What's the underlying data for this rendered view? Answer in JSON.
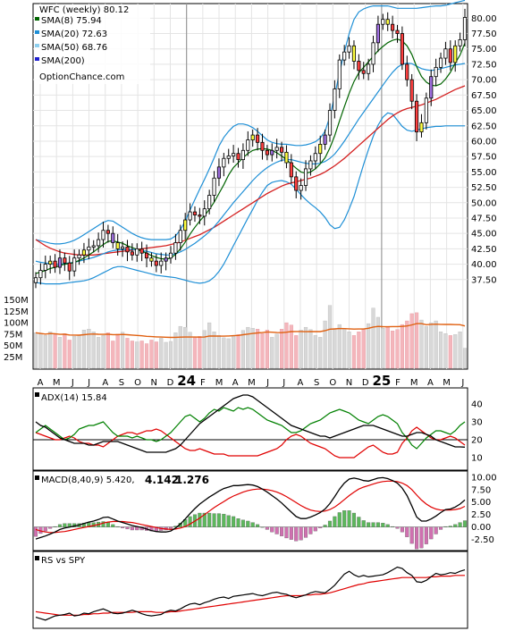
{
  "chart_data": {
    "type": "candlestick",
    "symbol": "WFC",
    "title": "WFC (weekly) 80.12",
    "source_label": "OptionChance.com",
    "colors": {
      "sma8": "#006400",
      "sma20": "#1e8fd6",
      "sma50": "#8ecfee",
      "sma200": "#2020d0",
      "sma40": "#d42020",
      "up": "#ffffff",
      "down": "#ff4040",
      "bb": "#1e8fd6",
      "vol_up": "#d8d8d8",
      "vol_down": "#f4b6bc",
      "vol_ma": "#e06010",
      "adx": "#000000",
      "pdi": "#008000",
      "mdi": "#e00000",
      "macd": "#000000",
      "macd_signal": "#e00000",
      "hist_up": "#5cb85c",
      "hist_down": "#d070b0",
      "rs": "#000000",
      "rs_ma": "#e00000"
    },
    "legend": [
      {
        "label": "SMA(8) 75.94",
        "color": "#006400"
      },
      {
        "label": "SMA(20) 72.63",
        "color": "#1e8fd6"
      },
      {
        "label": "SMA(50) 68.76",
        "color": "#8ecfee"
      },
      {
        "label": "SMA(200)",
        "color": "#2020d0"
      }
    ],
    "price_axis": {
      "min": 35,
      "max": 81.5,
      "ticks": [
        "80.00",
        "77.50",
        "75.00",
        "72.50",
        "70.00",
        "67.50",
        "65.00",
        "62.50",
        "60.00",
        "57.50",
        "55.00",
        "52.50",
        "50.00",
        "47.50",
        "45.00",
        "42.50",
        "40.00",
        "37.50"
      ]
    },
    "volume_axis": {
      "max": 165,
      "ticks": [
        "150M",
        "125M",
        "100M",
        "75M",
        "50M",
        "25M"
      ]
    },
    "x_labels": [
      "A",
      "M",
      "J",
      "J",
      "A",
      "S",
      "O",
      "N",
      "D",
      "24",
      "F",
      "M",
      "A",
      "M",
      "J",
      "J",
      "A",
      "S",
      "O",
      "N",
      "D",
      "25",
      "F",
      "M",
      "A",
      "M",
      "J"
    ],
    "closes": [
      37.8,
      39.0,
      40.0,
      40.5,
      39.5,
      41.0,
      40.2,
      38.9,
      41.0,
      41.5,
      42.3,
      42.8,
      43.0,
      44.0,
      45.5,
      45.0,
      43.5,
      42.5,
      42.8,
      42.0,
      41.5,
      42.5,
      41.8,
      41.0,
      40.5,
      39.8,
      40.5,
      41.0,
      41.8,
      43.5,
      45.5,
      47.2,
      48.5,
      48.0,
      47.8,
      49.0,
      51.2,
      54.0,
      55.8,
      57.2,
      57.6,
      58.0,
      57.0,
      58.5,
      60.2,
      61.0,
      59.8,
      58.5,
      57.8,
      58.5,
      59.0,
      58.2,
      56.5,
      54.2,
      52.0,
      52.8,
      55.5,
      56.8,
      58.0,
      59.5,
      61.0,
      65.0,
      68.5,
      73.2,
      74.5,
      75.5,
      73.0,
      71.5,
      71.0,
      72.5,
      76.0,
      79.0,
      79.8,
      79.0,
      78.0,
      77.5,
      72.5,
      70.0,
      66.5,
      61.5,
      63.0,
      67.0,
      70.5,
      72.0,
      73.5,
      75.0,
      72.8,
      75.5,
      76.5,
      80.12
    ],
    "volumes": [
      78,
      75,
      72,
      80,
      74,
      68,
      76,
      62,
      70,
      72,
      84,
      86,
      80,
      68,
      72,
      78,
      60,
      75,
      79,
      66,
      60,
      58,
      60,
      54,
      62,
      58,
      66,
      57,
      59,
      78,
      92,
      90,
      79,
      67,
      70,
      83,
      100,
      80,
      72,
      67,
      65,
      70,
      74,
      83,
      90,
      88,
      86,
      76,
      84,
      68,
      75,
      86,
      100,
      95,
      72,
      84,
      90,
      85,
      72,
      68,
      104,
      138,
      86,
      96,
      88,
      80,
      72,
      80,
      86,
      98,
      132,
      112,
      88,
      90,
      82,
      85,
      96,
      104,
      120,
      122,
      106,
      92,
      100,
      104,
      80,
      76,
      72,
      74,
      80,
      44
    ],
    "sma8": [
      38.5,
      38.7,
      39.0,
      39.3,
      39.5,
      39.8,
      40.0,
      40.1,
      40.3,
      40.6,
      41.0,
      41.5,
      42.0,
      42.6,
      43.2,
      43.7,
      43.8,
      43.6,
      43.4,
      43.0,
      42.7,
      42.4,
      42.1,
      41.8,
      41.4,
      41.1,
      40.9,
      40.8,
      41.0,
      41.6,
      42.5,
      43.6,
      44.9,
      46.0,
      47.0,
      47.9,
      48.9,
      50.1,
      51.5,
      52.9,
      54.5,
      55.7,
      56.5,
      57.3,
      58.0,
      58.5,
      58.7,
      58.8,
      58.7,
      58.5,
      58.1,
      57.6,
      57.0,
      56.3,
      55.6,
      55.0,
      54.8,
      55.0,
      55.5,
      56.3,
      57.3,
      58.9,
      60.9,
      63.3,
      65.6,
      67.8,
      69.7,
      71.1,
      72.0,
      72.9,
      73.8,
      74.7,
      75.4,
      76.0,
      76.4,
      76.6,
      76.3,
      75.5,
      74.1,
      72.1,
      70.5,
      69.6,
      69.1,
      69.0,
      69.3,
      70.1,
      71.2,
      72.7,
      74.0,
      75.94
    ],
    "sma20": [
      40.5,
      40.3,
      40.2,
      40.1,
      40.0,
      40.0,
      40.1,
      40.2,
      40.3,
      40.5,
      40.7,
      40.9,
      41.1,
      41.4,
      41.7,
      42.0,
      42.2,
      42.3,
      42.4,
      42.4,
      42.4,
      42.3,
      42.2,
      42.1,
      41.9,
      41.7,
      41.6,
      41.5,
      41.5,
      41.7,
      42.0,
      42.4,
      42.9,
      43.4,
      44.0,
      44.6,
      45.3,
      46.1,
      47.0,
      48.0,
      49.0,
      50.0,
      50.9,
      51.8,
      52.7,
      53.6,
      54.4,
      55.1,
      55.7,
      56.2,
      56.6,
      56.9,
      57.0,
      57.0,
      56.8,
      56.6,
      56.4,
      56.3,
      56.3,
      56.4,
      56.7,
      57.2,
      57.9,
      58.9,
      60.0,
      61.2,
      62.4,
      63.6,
      64.7,
      65.8,
      66.9,
      68.0,
      69.1,
      70.2,
      71.2,
      72.0,
      72.5,
      72.7,
      72.6,
      72.2,
      71.8,
      71.6,
      71.5,
      71.6,
      71.8,
      72.0,
      72.2,
      72.4,
      72.5,
      72.63
    ],
    "sma40": [
      44.0,
      43.5,
      43.0,
      42.6,
      42.3,
      42.0,
      41.8,
      41.7,
      41.6,
      41.5,
      41.5,
      41.5,
      41.5,
      41.6,
      41.7,
      41.8,
      41.9,
      42.0,
      42.1,
      42.2,
      42.3,
      42.4,
      42.5,
      42.6,
      42.7,
      42.8,
      42.9,
      43.0,
      43.2,
      43.4,
      43.6,
      43.9,
      44.2,
      44.5,
      44.8,
      45.2,
      45.6,
      46.0,
      46.5,
      47.0,
      47.5,
      48.0,
      48.5,
      49.0,
      49.5,
      50.0,
      50.5,
      51.0,
      51.5,
      51.9,
      52.3,
      52.7,
      53.0,
      53.2,
      53.4,
      53.6,
      53.8,
      54.0,
      54.3,
      54.6,
      55.0,
      55.5,
      56.0,
      56.6,
      57.2,
      57.9,
      58.6,
      59.3,
      60.0,
      60.7,
      61.4,
      62.1,
      62.8,
      63.5,
      64.1,
      64.6,
      65.0,
      65.3,
      65.5,
      65.7,
      65.9,
      66.2,
      66.5,
      66.8,
      67.2,
      67.6,
      68.0,
      68.4,
      68.7,
      69.0
    ],
    "bb_upper": [
      44.0,
      43.8,
      43.6,
      43.4,
      43.3,
      43.3,
      43.4,
      43.6,
      43.9,
      44.3,
      44.8,
      45.3,
      45.8,
      46.3,
      46.8,
      47.1,
      47.0,
      46.5,
      46.0,
      45.5,
      45.0,
      44.6,
      44.3,
      44.1,
      44.0,
      44.0,
      44.0,
      44.0,
      44.1,
      44.6,
      45.6,
      47.0,
      48.8,
      50.5,
      52.2,
      53.8,
      55.5,
      57.3,
      59.2,
      60.6,
      61.6,
      62.4,
      62.8,
      62.8,
      62.6,
      62.2,
      61.6,
      60.9,
      60.2,
      59.8,
      59.6,
      59.5,
      59.5,
      59.4,
      59.3,
      59.3,
      59.4,
      59.6,
      59.9,
      60.5,
      61.6,
      64.0,
      67.4,
      71.2,
      74.5,
      77.5,
      79.8,
      81.0,
      81.5,
      81.8,
      82.0,
      82.0,
      82.0,
      82.0,
      81.8,
      81.6,
      81.6,
      81.6,
      81.6,
      81.6,
      81.7,
      81.8,
      81.9,
      82.0,
      82.0,
      82.1,
      82.3,
      82.5,
      82.7,
      82.9
    ],
    "bb_lower": [
      37.0,
      36.9,
      36.8,
      36.8,
      36.8,
      36.8,
      36.9,
      37.0,
      37.1,
      37.2,
      37.3,
      37.5,
      37.8,
      38.2,
      38.6,
      39.0,
      39.4,
      39.6,
      39.6,
      39.4,
      39.2,
      39.0,
      38.8,
      38.6,
      38.4,
      38.2,
      38.1,
      38.0,
      37.9,
      37.8,
      37.6,
      37.4,
      37.2,
      37.0,
      36.9,
      37.0,
      37.3,
      37.9,
      38.8,
      40.0,
      41.5,
      43.0,
      44.5,
      46.0,
      47.5,
      48.9,
      50.4,
      51.7,
      52.8,
      53.3,
      53.5,
      53.6,
      53.4,
      53.0,
      52.2,
      51.3,
      50.5,
      49.8,
      49.2,
      48.5,
      47.6,
      46.4,
      45.8,
      46.0,
      47.2,
      49.0,
      51.0,
      53.6,
      56.2,
      58.6,
      60.8,
      62.6,
      63.9,
      64.6,
      64.4,
      63.4,
      62.4,
      61.8,
      61.6,
      61.8,
      62.0,
      62.2,
      62.3,
      62.4,
      62.4,
      62.5,
      62.5,
      62.5,
      62.5,
      62.5
    ],
    "adx_axis": {
      "min": 5,
      "max": 47,
      "ticks": [
        "40",
        "30",
        "20",
        "10"
      ]
    },
    "adx": [
      30,
      28,
      27,
      25,
      23,
      21,
      20,
      19,
      18,
      18,
      18,
      17,
      17,
      18,
      19,
      19,
      19,
      19,
      18,
      17,
      16,
      15,
      14,
      13,
      13,
      13,
      13,
      13,
      14,
      15,
      17,
      20,
      23,
      26,
      29,
      31,
      33,
      35,
      37,
      39,
      41,
      43,
      44,
      45,
      45,
      44,
      42,
      40,
      38,
      36,
      34,
      32,
      30,
      28,
      27,
      26,
      25,
      24,
      23,
      22,
      22,
      21,
      22,
      23,
      24,
      25,
      26,
      27,
      28,
      28,
      28,
      27,
      26,
      25,
      24,
      23,
      22,
      22,
      23,
      24,
      24,
      23,
      22,
      20,
      19,
      18,
      17,
      16,
      16,
      15.84
    ],
    "pdi": [
      24,
      26,
      28,
      26,
      24,
      22,
      20,
      21,
      23,
      26,
      27,
      28,
      28,
      29,
      30,
      27,
      24,
      22,
      22,
      22,
      21,
      22,
      21,
      20,
      20,
      19,
      20,
      22,
      24,
      27,
      30,
      33,
      34,
      32,
      30,
      32,
      35,
      37,
      36,
      38,
      37,
      36,
      38,
      37,
      38,
      37,
      35,
      33,
      31,
      30,
      29,
      28,
      26,
      24,
      24,
      25,
      27,
      29,
      30,
      31,
      33,
      35,
      36,
      37,
      36,
      35,
      33,
      31,
      30,
      29,
      31,
      33,
      34,
      33,
      31,
      29,
      24,
      21,
      17,
      15,
      18,
      21,
      23,
      25,
      25,
      24,
      23,
      25,
      28,
      30
    ],
    "mdi": [
      24,
      23,
      22,
      21,
      20,
      20,
      21,
      22,
      21,
      19,
      18,
      18,
      17,
      17,
      16,
      18,
      20,
      22,
      23,
      24,
      24,
      23,
      24,
      25,
      25,
      26,
      25,
      23,
      21,
      19,
      17,
      15,
      14,
      14,
      15,
      14,
      13,
      12,
      12,
      12,
      11,
      11,
      11,
      11,
      11,
      11,
      11,
      12,
      13,
      14,
      15,
      17,
      20,
      22,
      23,
      22,
      20,
      18,
      17,
      16,
      15,
      13,
      11,
      10,
      10,
      10,
      10,
      12,
      14,
      16,
      17,
      15,
      13,
      12,
      12,
      13,
      18,
      21,
      25,
      27,
      25,
      23,
      21,
      20,
      20,
      21,
      22,
      21,
      19,
      17
    ],
    "macd_axis": {
      "min": -4.0,
      "max": 10.5,
      "ticks": [
        "10.00",
        "7.50",
        "5.00",
        "2.50",
        "0.00",
        "-2.50"
      ]
    },
    "macd_label": "MACD(8,40,9) 5.420,",
    "macd_values": [
      "4.142",
      "1.276"
    ],
    "macd": [
      -2.4,
      -2.1,
      -1.8,
      -1.4,
      -1.0,
      -0.5,
      -0.2,
      0.0,
      0.2,
      0.4,
      0.7,
      1.0,
      1.2,
      1.5,
      1.9,
      2.0,
      1.6,
      1.2,
      0.9,
      0.6,
      0.3,
      0.1,
      -0.1,
      -0.4,
      -0.7,
      -0.9,
      -1.0,
      -1.0,
      -0.8,
      -0.2,
      0.6,
      1.6,
      2.7,
      3.7,
      4.6,
      5.3,
      6.0,
      6.6,
      7.2,
      7.7,
      8.0,
      8.3,
      8.3,
      8.4,
      8.5,
      8.4,
      8.1,
      7.6,
      7.0,
      6.3,
      5.6,
      4.8,
      3.9,
      3.0,
      2.1,
      1.7,
      1.7,
      2.0,
      2.4,
      2.9,
      3.6,
      4.7,
      6.1,
      7.6,
      8.8,
      9.6,
      9.8,
      9.6,
      9.3,
      9.2,
      9.5,
      9.8,
      9.9,
      9.7,
      9.3,
      8.8,
      7.8,
      6.3,
      4.2,
      2.0,
      1.2,
      1.2,
      1.6,
      2.2,
      2.9,
      3.5,
      3.6,
      4.0,
      4.6,
      5.42
    ],
    "macd_signal": [
      -0.5,
      -0.8,
      -1.0,
      -1.1,
      -1.1,
      -1.0,
      -0.9,
      -0.7,
      -0.5,
      -0.3,
      -0.1,
      0.1,
      0.3,
      0.5,
      0.8,
      1.0,
      1.1,
      1.1,
      1.1,
      1.0,
      0.9,
      0.7,
      0.5,
      0.3,
      0.1,
      -0.1,
      -0.3,
      -0.4,
      -0.5,
      -0.4,
      -0.2,
      0.1,
      0.6,
      1.2,
      1.8,
      2.5,
      3.2,
      3.9,
      4.5,
      5.1,
      5.7,
      6.2,
      6.6,
      7.0,
      7.3,
      7.5,
      7.6,
      7.6,
      7.5,
      7.3,
      7.0,
      6.6,
      6.1,
      5.5,
      4.9,
      4.3,
      3.8,
      3.4,
      3.2,
      3.1,
      3.2,
      3.5,
      4.0,
      4.7,
      5.5,
      6.3,
      7.0,
      7.6,
      8.0,
      8.3,
      8.6,
      8.9,
      9.1,
      9.2,
      9.2,
      9.1,
      8.8,
      8.3,
      7.5,
      6.4,
      5.4,
      4.6,
      4.0,
      3.6,
      3.4,
      3.4,
      3.4,
      3.5,
      3.7,
      4.14
    ],
    "rs_label": "RS vs SPY",
    "rs_axis": {
      "min": 0,
      "max": 100
    },
    "rs": [
      12,
      10,
      8,
      11,
      14,
      15,
      16,
      18,
      14,
      15,
      18,
      17,
      20,
      22,
      24,
      21,
      18,
      17,
      18,
      20,
      22,
      20,
      17,
      15,
      14,
      15,
      16,
      20,
      22,
      21,
      24,
      28,
      31,
      32,
      30,
      33,
      35,
      38,
      40,
      41,
      39,
      42,
      43,
      44,
      45,
      46,
      44,
      43,
      45,
      47,
      48,
      46,
      45,
      42,
      40,
      42,
      44,
      47,
      49,
      48,
      47,
      52,
      58,
      66,
      74,
      78,
      73,
      70,
      72,
      70,
      71,
      72,
      73,
      76,
      80,
      84,
      82,
      76,
      72,
      63,
      62,
      65,
      70,
      75,
      73,
      74,
      76,
      75,
      78,
      80
    ],
    "rs_ma": [
      20,
      19,
      18,
      17,
      16,
      15,
      15,
      15,
      15,
      15,
      16,
      16,
      17,
      17,
      18,
      18,
      19,
      19,
      19,
      19,
      19,
      20,
      20,
      20,
      20,
      19,
      19,
      19,
      20,
      20,
      21,
      22,
      23,
      24,
      25,
      26,
      27,
      28,
      29,
      30,
      31,
      32,
      33,
      34,
      35,
      36,
      37,
      38,
      39,
      40,
      41,
      42,
      43,
      43,
      43,
      43,
      44,
      44,
      45,
      45,
      46,
      47,
      49,
      51,
      53,
      55,
      57,
      59,
      60,
      62,
      63,
      64,
      65,
      66,
      67,
      68,
      69,
      69,
      69,
      69,
      69,
      69,
      70,
      70,
      71,
      71,
      71,
      72,
      72,
      72
    ]
  }
}
